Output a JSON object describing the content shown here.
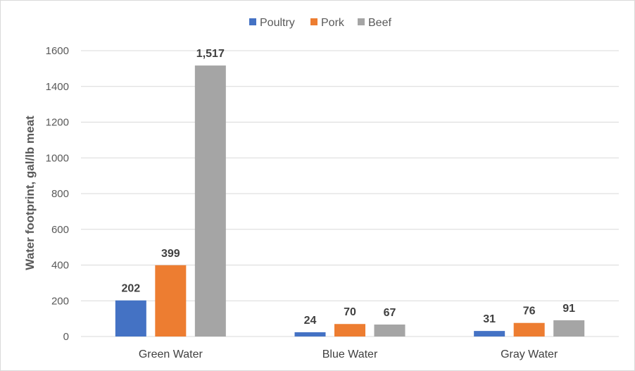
{
  "chart_data": {
    "type": "bar",
    "categories": [
      "Green Water",
      "Blue Water",
      "Gray Water"
    ],
    "series": [
      {
        "name": "Poultry",
        "values": [
          202,
          24,
          31
        ],
        "labels": [
          "202",
          "24",
          "31"
        ],
        "color": "#4472C4"
      },
      {
        "name": "Pork",
        "values": [
          399,
          70,
          76
        ],
        "labels": [
          "399",
          "70",
          "76"
        ],
        "color": "#ED7D31"
      },
      {
        "name": "Beef",
        "values": [
          1517,
          67,
          91
        ],
        "labels": [
          "1,517",
          "67",
          "91"
        ],
        "color": "#A5A5A5"
      }
    ],
    "title": "",
    "xlabel": "",
    "ylabel": "Water footprint, gal/lb meat",
    "ylim": [
      0,
      1600
    ],
    "yticks": [
      0,
      200,
      400,
      600,
      800,
      1000,
      1200,
      1400,
      1600
    ],
    "ytick_labels": [
      "0",
      "200",
      "400",
      "600",
      "800",
      "1000",
      "1200",
      "1400",
      "1600"
    ],
    "grid": true,
    "legend": "top"
  }
}
